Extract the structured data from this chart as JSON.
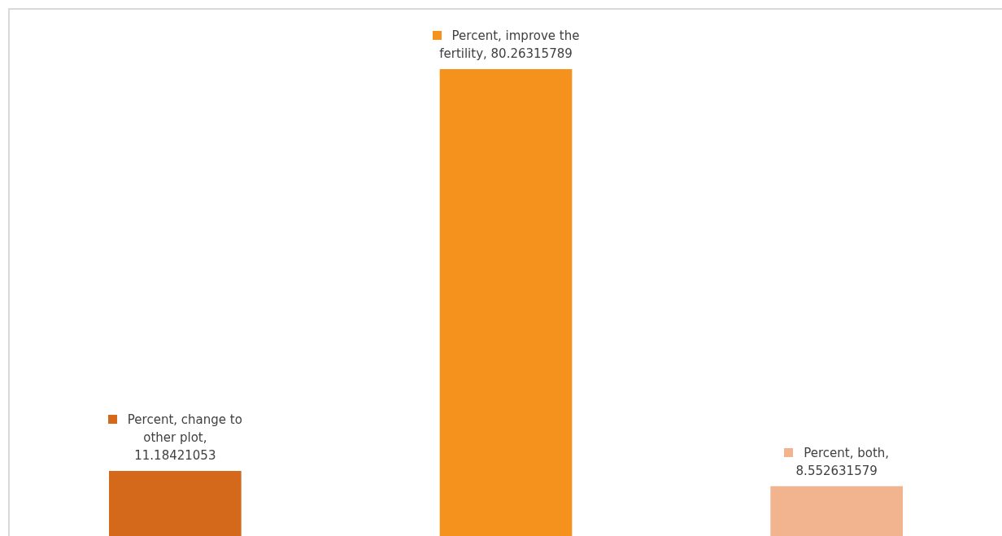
{
  "chart_data": {
    "type": "bar",
    "categories": [
      null,
      null,
      null
    ],
    "series": [
      {
        "colors": [
          "#d4691c",
          "#f5921e",
          "#f2b48f"
        ],
        "values": [
          11.18421053,
          80.26315789,
          8.552631579
        ],
        "value_labels": [
          "Percent, change to other plot, 11.18421053",
          "Percent, improve the fertility, 80.26315789",
          "Percent, both, 8.552631579"
        ]
      }
    ]
  }
}
